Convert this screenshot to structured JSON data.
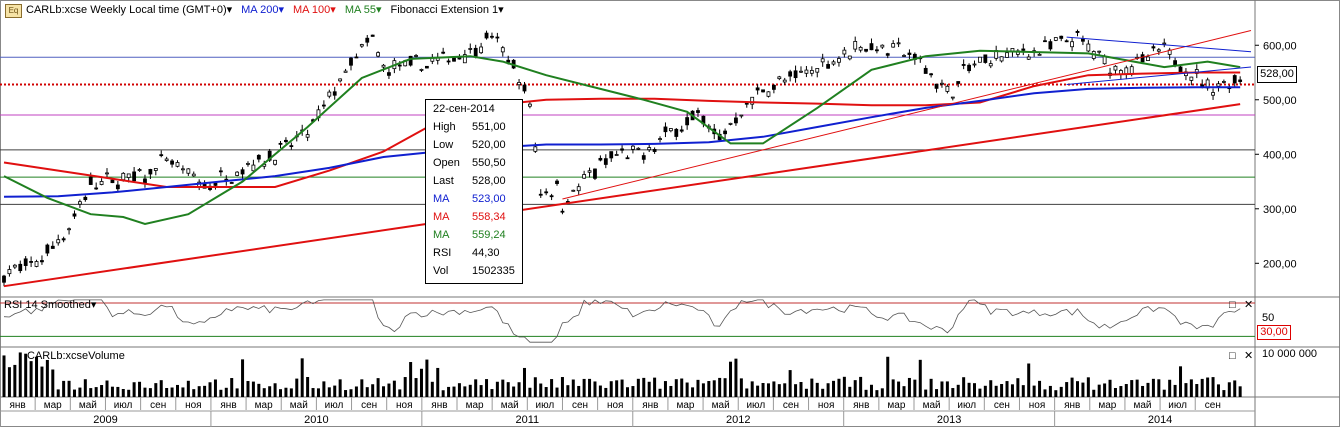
{
  "header": {
    "symbol_title": "CARLb:xcse Weekly Local time (GMT+0)",
    "ma200_label": "MA 200",
    "ma100_label": "MA 100",
    "ma55_label": "MA 55",
    "fib_label": "Fibonacci Extension 1",
    "dropdown_glyph": "▾",
    "logo_text": "Eq"
  },
  "colors": {
    "ma200": "#1020d0",
    "ma100": "#e01010",
    "ma55": "#208020",
    "trend": "#e01010",
    "candle": "#000000"
  },
  "tooltip": {
    "date": "22-сен-2014",
    "rows": [
      {
        "label": "High",
        "value": "551,00"
      },
      {
        "label": "Low",
        "value": "520,00"
      },
      {
        "label": "Open",
        "value": "550,50"
      },
      {
        "label": "Last",
        "value": "528,00"
      },
      {
        "label": "MA",
        "value": "523,00"
      },
      {
        "label": "MA",
        "value": "558,34"
      },
      {
        "label": "MA",
        "value": "559,24"
      },
      {
        "label": "RSI",
        "value": "44,30"
      },
      {
        "label": "Vol",
        "value": "1502335"
      }
    ]
  },
  "last_price_label": "528,00",
  "rsi_panel": {
    "title": "RSI 14 Smoothed",
    "levels": [
      "50",
      "30,00"
    ]
  },
  "volume_panel": {
    "title": "CARLb:xcseVolume",
    "axis_label": "10 000 000"
  },
  "panel_controls": {
    "minimize": "□",
    "close": "✕"
  },
  "chart_data": {
    "type": "candlestick",
    "interval": "weekly",
    "ylim": [
      140,
      650
    ],
    "yticks": [
      "600,00",
      "500,00",
      "400,00",
      "300,00",
      "200,00"
    ],
    "yticks_values": [
      600,
      500,
      400,
      300,
      200
    ],
    "months": [
      "янв",
      "мар",
      "май",
      "июл",
      "сен",
      "ноя",
      "янв",
      "мар",
      "май",
      "июл",
      "сен",
      "ноя",
      "янв",
      "мар",
      "май",
      "июл",
      "сен",
      "ноя",
      "янв",
      "мар",
      "май",
      "июл",
      "сен",
      "ноя",
      "янв",
      "мар",
      "май",
      "июл",
      "сен",
      "ноя",
      "янв",
      "мар",
      "май",
      "июл",
      "сен"
    ],
    "years": [
      "2009",
      "2010",
      "2011",
      "2012",
      "2013",
      "2014"
    ],
    "price_path": [
      [
        0,
        180
      ],
      [
        6,
        200
      ],
      [
        12,
        265
      ],
      [
        16,
        345
      ],
      [
        26,
        360
      ],
      [
        30,
        390
      ],
      [
        37,
        340
      ],
      [
        45,
        380
      ],
      [
        52,
        410
      ],
      [
        57,
        450
      ],
      [
        61,
        520
      ],
      [
        65,
        580
      ],
      [
        68,
        610
      ],
      [
        70,
        555
      ],
      [
        74,
        560
      ],
      [
        80,
        570
      ],
      [
        86,
        590
      ],
      [
        90,
        615
      ],
      [
        94,
        560
      ],
      [
        97,
        490
      ],
      [
        99,
        330
      ],
      [
        102,
        340
      ],
      [
        103,
        310
      ],
      [
        108,
        360
      ],
      [
        112,
        395
      ],
      [
        118,
        400
      ],
      [
        124,
        450
      ],
      [
        128,
        470
      ],
      [
        132,
        430
      ],
      [
        136,
        480
      ],
      [
        140,
        520
      ],
      [
        146,
        540
      ],
      [
        152,
        570
      ],
      [
        158,
        600
      ],
      [
        166,
        590
      ],
      [
        170,
        560
      ],
      [
        174,
        510
      ],
      [
        178,
        560
      ],
      [
        184,
        580
      ],
      [
        190,
        590
      ],
      [
        198,
        610
      ],
      [
        204,
        560
      ],
      [
        208,
        560
      ],
      [
        214,
        590
      ],
      [
        218,
        560
      ],
      [
        222,
        520
      ],
      [
        228,
        540
      ]
    ],
    "ma55": [
      [
        0,
        360
      ],
      [
        8,
        320
      ],
      [
        16,
        290
      ],
      [
        22,
        285
      ],
      [
        26,
        272
      ],
      [
        34,
        290
      ],
      [
        44,
        350
      ],
      [
        56,
        450
      ],
      [
        66,
        540
      ],
      [
        75,
        575
      ],
      [
        86,
        580
      ],
      [
        92,
        570
      ],
      [
        100,
        545
      ],
      [
        108,
        525
      ],
      [
        118,
        500
      ],
      [
        126,
        478
      ],
      [
        134,
        420
      ],
      [
        140,
        420
      ],
      [
        150,
        485
      ],
      [
        160,
        555
      ],
      [
        170,
        580
      ],
      [
        180,
        590
      ],
      [
        200,
        585
      ],
      [
        214,
        560
      ],
      [
        222,
        570
      ],
      [
        228,
        560
      ]
    ],
    "ma100": [
      [
        0,
        385
      ],
      [
        10,
        370
      ],
      [
        20,
        355
      ],
      [
        30,
        340
      ],
      [
        40,
        340
      ],
      [
        50,
        340
      ],
      [
        60,
        370
      ],
      [
        70,
        405
      ],
      [
        80,
        460
      ],
      [
        90,
        490
      ],
      [
        100,
        500
      ],
      [
        110,
        502
      ],
      [
        120,
        502
      ],
      [
        130,
        498
      ],
      [
        140,
        495
      ],
      [
        150,
        493
      ],
      [
        160,
        490
      ],
      [
        170,
        490
      ],
      [
        180,
        495
      ],
      [
        190,
        525
      ],
      [
        200,
        545
      ],
      [
        210,
        548
      ],
      [
        220,
        550
      ],
      [
        228,
        550
      ]
    ],
    "ma200": [
      [
        0,
        322
      ],
      [
        10,
        323
      ],
      [
        20,
        330
      ],
      [
        30,
        340
      ],
      [
        40,
        350
      ],
      [
        50,
        360
      ],
      [
        60,
        375
      ],
      [
        70,
        395
      ],
      [
        80,
        405
      ],
      [
        90,
        412
      ],
      [
        100,
        418
      ],
      [
        110,
        418
      ],
      [
        120,
        419
      ],
      [
        130,
        422
      ],
      [
        140,
        432
      ],
      [
        150,
        450
      ],
      [
        160,
        468
      ],
      [
        170,
        485
      ],
      [
        180,
        498
      ],
      [
        190,
        512
      ],
      [
        200,
        520
      ],
      [
        210,
        522
      ],
      [
        220,
        523
      ],
      [
        228,
        523
      ]
    ],
    "trendlines": [
      {
        "name": "support",
        "from": [
          0,
          158
        ],
        "to": [
          228,
          492
        ],
        "width": 2
      },
      {
        "name": "fib-channel",
        "from": [
          103,
          318
        ],
        "to": [
          230,
          627
        ],
        "width": 1
      }
    ],
    "hlines": [
      {
        "value": 578,
        "color": "#5060c0",
        "style": "solid"
      },
      {
        "value": 528,
        "color": "#d00000",
        "style": "dotted"
      },
      {
        "value": 472,
        "color": "#c040c0",
        "style": "solid"
      },
      {
        "value": 408,
        "color": "#404040",
        "style": "solid"
      },
      {
        "value": 358,
        "color": "#208020",
        "style": "solid"
      },
      {
        "value": 308,
        "color": "#404040",
        "style": "solid"
      }
    ],
    "wedge": {
      "upper_from": [
        196,
        615
      ],
      "upper_to": [
        230,
        588
      ],
      "lower_from": [
        196,
        528
      ],
      "lower_to": [
        230,
        560
      ]
    },
    "rsi_ylim": [
      20,
      70
    ],
    "rsi_levels": [
      50,
      30
    ],
    "volume_ylim": [
      0,
      10000000
    ]
  }
}
